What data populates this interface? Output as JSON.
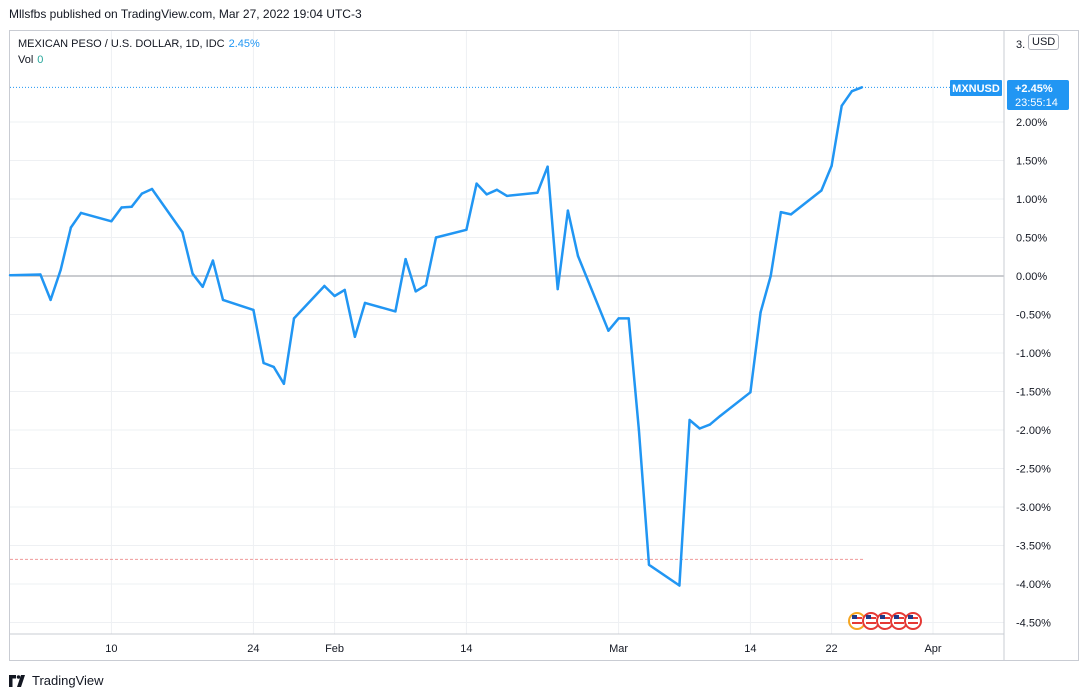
{
  "header": {
    "published_text": "Mllsfbs published on TradingView.com, Mar 27, 2022 19:04 UTC-3"
  },
  "legend": {
    "symbol_text": "MEXICAN PESO / U.S. DOLLAR, 1D, IDC",
    "change_value": "2.45%",
    "vol_label": "Vol",
    "vol_value": "0"
  },
  "price_scale": {
    "currency_button": "USD",
    "top_partial_label": "3."
  },
  "last_price_badge": {
    "symbol": "MXNUSD",
    "value": "+2.45%",
    "countdown": "23:55:14"
  },
  "footer": {
    "brand": "TradingView"
  },
  "colors": {
    "line": "#2196f3",
    "grid": "#eef0f3",
    "axis_text": "#131722",
    "badge_bg": "#2196f3"
  },
  "chart_data": {
    "type": "line",
    "yaxis_format": "percent",
    "ylim": [
      -4.6,
      3.0
    ],
    "yticks": [
      2.0,
      1.5,
      1.0,
      0.5,
      0.0,
      -0.5,
      -1.0,
      -1.5,
      -2.0,
      -2.5,
      -3.0,
      -3.5,
      -4.0,
      -4.5
    ],
    "ytick_labels": [
      "2.00%",
      "1.50%",
      "1.00%",
      "0.50%",
      "0.00%",
      "-0.50%",
      "-1.00%",
      "-1.50%",
      "-2.00%",
      "-2.50%",
      "-3.00%",
      "-3.50%",
      "-4.00%",
      "-4.50%"
    ],
    "xticks": [
      {
        "label": "10",
        "date": "2022-01-10"
      },
      {
        "label": "24",
        "date": "2022-01-24"
      },
      {
        "label": "Feb",
        "date": "2022-02-01"
      },
      {
        "label": "14",
        "date": "2022-02-14"
      },
      {
        "label": "Mar",
        "date": "2022-03-01"
      },
      {
        "label": "14",
        "date": "2022-03-14"
      },
      {
        "label": "22",
        "date": "2022-03-22"
      },
      {
        "label": "Apr",
        "date": "2022-04-01"
      }
    ],
    "xlim": [
      "2021-12-31",
      "2022-04-08"
    ],
    "series": [
      {
        "points": [
          [
            "2021-12-31",
            0.01
          ],
          [
            "2022-01-03",
            0.02
          ],
          [
            "2022-01-04",
            -0.31
          ],
          [
            "2022-01-05",
            0.08
          ],
          [
            "2022-01-06",
            0.63
          ],
          [
            "2022-01-07",
            0.82
          ],
          [
            "2022-01-10",
            0.71
          ],
          [
            "2022-01-11",
            0.89
          ],
          [
            "2022-01-12",
            0.9
          ],
          [
            "2022-01-13",
            1.07
          ],
          [
            "2022-01-14",
            1.13
          ],
          [
            "2022-01-17",
            0.57
          ],
          [
            "2022-01-18",
            0.03
          ],
          [
            "2022-01-19",
            -0.14
          ],
          [
            "2022-01-20",
            0.2
          ],
          [
            "2022-01-21",
            -0.31
          ],
          [
            "2022-01-24",
            -0.44
          ],
          [
            "2022-01-25",
            -1.13
          ],
          [
            "2022-01-26",
            -1.18
          ],
          [
            "2022-01-27",
            -1.4
          ],
          [
            "2022-01-28",
            -0.55
          ],
          [
            "2022-01-31",
            -0.13
          ],
          [
            "2022-02-01",
            -0.26
          ],
          [
            "2022-02-02",
            -0.18
          ],
          [
            "2022-02-03",
            -0.79
          ],
          [
            "2022-02-04",
            -0.35
          ],
          [
            "2022-02-07",
            -0.46
          ],
          [
            "2022-02-08",
            0.22
          ],
          [
            "2022-02-09",
            -0.2
          ],
          [
            "2022-02-10",
            -0.12
          ],
          [
            "2022-02-11",
            0.5
          ],
          [
            "2022-02-14",
            0.6
          ],
          [
            "2022-02-15",
            1.2
          ],
          [
            "2022-02-16",
            1.06
          ],
          [
            "2022-02-17",
            1.12
          ],
          [
            "2022-02-18",
            1.04
          ],
          [
            "2022-02-21",
            1.08
          ],
          [
            "2022-02-22",
            1.42
          ],
          [
            "2022-02-23",
            -0.17
          ],
          [
            "2022-02-24",
            0.85
          ],
          [
            "2022-02-25",
            0.26
          ],
          [
            "2022-02-28",
            -0.71
          ],
          [
            "2022-03-01",
            -0.55
          ],
          [
            "2022-03-02",
            -0.55
          ],
          [
            "2022-03-03",
            -2.0
          ],
          [
            "2022-03-04",
            -3.75
          ],
          [
            "2022-03-07",
            -4.02
          ],
          [
            "2022-03-08",
            -1.87
          ],
          [
            "2022-03-09",
            -1.98
          ],
          [
            "2022-03-10",
            -1.93
          ],
          [
            "2022-03-11",
            -1.82
          ],
          [
            "2022-03-14",
            -1.51
          ],
          [
            "2022-03-15",
            -0.47
          ],
          [
            "2022-03-16",
            0.0
          ],
          [
            "2022-03-17",
            0.83
          ],
          [
            "2022-03-18",
            0.8
          ],
          [
            "2022-03-21",
            1.11
          ],
          [
            "2022-03-22",
            1.43
          ],
          [
            "2022-03-23",
            2.21
          ],
          [
            "2022-03-24",
            2.4
          ],
          [
            "2022-03-25",
            2.45
          ]
        ]
      }
    ],
    "reference_lines": [
      {
        "value": 0.0,
        "style": "solid"
      },
      {
        "value": 2.45,
        "style": "dotted"
      },
      {
        "value": -3.68,
        "style": "dashed"
      }
    ],
    "grid": true,
    "legend_position": "top-left"
  }
}
